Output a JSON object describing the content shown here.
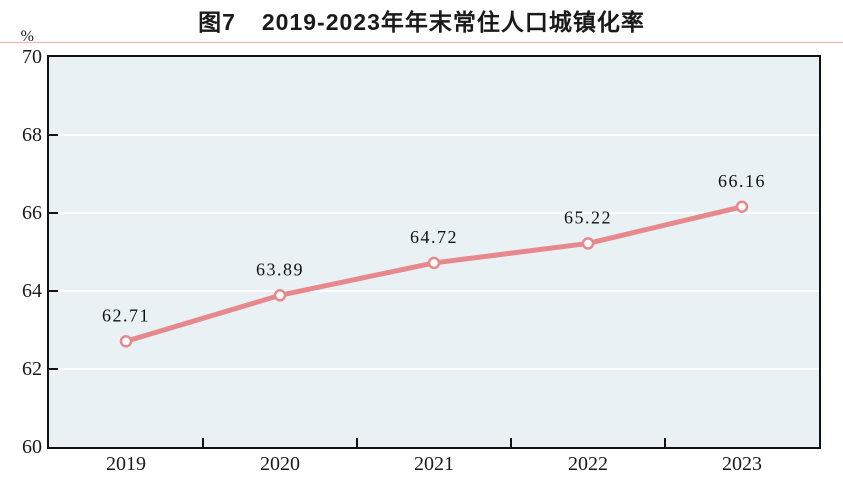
{
  "figure": {
    "label": "图7",
    "title": "2019-2023年年末常住人口城镇化率"
  },
  "chart_data": {
    "type": "line",
    "title": "图7 2019-2023年年末常住人口城镇化率",
    "unit": "%",
    "categories": [
      "2019",
      "2020",
      "2021",
      "2022",
      "2023"
    ],
    "values": [
      62.71,
      63.89,
      64.72,
      65.22,
      66.16
    ],
    "value_labels": [
      "62.71",
      "63.89",
      "64.72",
      "65.22",
      "66.16"
    ],
    "ylabel": "%",
    "xlabel": "",
    "ylim": [
      60,
      70
    ],
    "yticks": [
      60,
      62,
      64,
      66,
      68,
      70
    ],
    "grid": true,
    "legend_position": "none"
  },
  "style": {
    "line_color": "#e7898c",
    "marker_fill": "#ffffff",
    "plot_bg": "#e9f1f4",
    "grid_color": "#ffffff",
    "axis_color": "#111111",
    "text_color": "#1a1a1a",
    "title_underline_color": "#ea7f72"
  }
}
